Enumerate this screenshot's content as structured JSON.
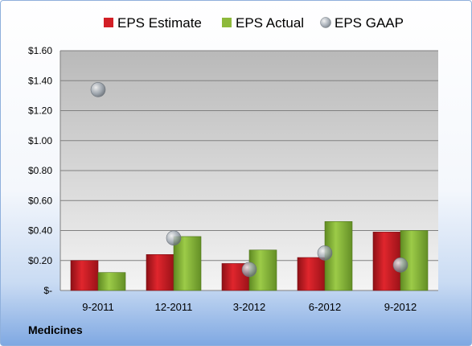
{
  "company": "Medicines",
  "colors": {
    "estimate": "#d21f26",
    "actual": "#8db93b",
    "gaap": "#9aa3ad",
    "plot_bg_top": "#b9b9b9",
    "plot_bg_bottom": "#f4f4f4",
    "grid": "#808080"
  },
  "chart_data": {
    "type": "bar",
    "categories": [
      "9-2011",
      "12-2011",
      "3-2012",
      "6-2012",
      "9-2012"
    ],
    "series": [
      {
        "name": "EPS Estimate",
        "type": "bar",
        "values": [
          0.2,
          0.24,
          0.18,
          0.22,
          0.39
        ]
      },
      {
        "name": "EPS Actual",
        "type": "bar",
        "values": [
          0.12,
          0.36,
          0.27,
          0.46,
          0.4
        ]
      },
      {
        "name": "EPS GAAP",
        "type": "scatter",
        "values": [
          1.34,
          0.35,
          0.14,
          0.25,
          0.17
        ]
      }
    ],
    "ylim": [
      0,
      1.6
    ],
    "yticks": [
      0,
      0.2,
      0.4,
      0.6,
      0.8,
      1.0,
      1.2,
      1.4,
      1.6
    ],
    "ytick_labels": [
      "$-",
      "$0.20",
      "$0.40",
      "$0.60",
      "$0.80",
      "$1.00",
      "$1.20",
      "$1.40",
      "$1.60"
    ],
    "legend_position": "top",
    "grid": true
  }
}
